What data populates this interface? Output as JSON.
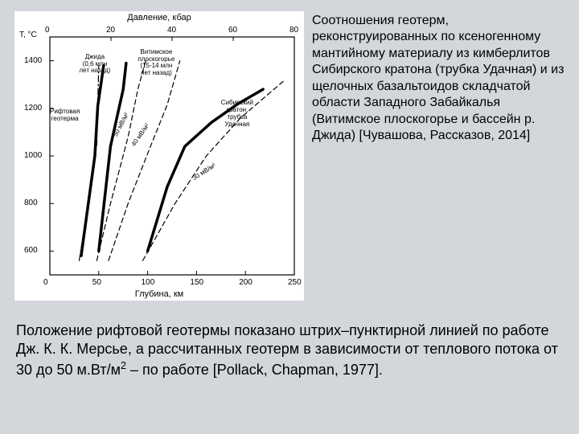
{
  "chart": {
    "type": "line",
    "background_color": "#ffffff",
    "page_bg": "#d3d7dc",
    "stroke_color": "#000000",
    "x_top": {
      "title": "Давление, кбар",
      "min": 0,
      "max": 80,
      "tick_step": 20,
      "ticks": [
        0,
        20,
        40,
        60,
        80
      ]
    },
    "x_bottom": {
      "title": "Глубина, км",
      "min": 0,
      "max": 250,
      "tick_step": 50,
      "ticks": [
        0,
        50,
        100,
        150,
        200,
        250
      ]
    },
    "y": {
      "unit": "T, °C",
      "min": 500,
      "max": 1500,
      "tick_step": 200,
      "ticks": [
        600,
        800,
        1000,
        1200,
        1400
      ]
    },
    "series": {
      "dzhida": {
        "style": "solid",
        "width": 3.5,
        "points": [
          [
            32,
            580
          ],
          [
            46,
            1000
          ],
          [
            49,
            1210
          ],
          [
            55,
            1380
          ]
        ]
      },
      "vitimskoe": {
        "style": "solid",
        "width": 3.5,
        "points": [
          [
            50,
            600
          ],
          [
            62,
            1040
          ],
          [
            75,
            1280
          ],
          [
            78,
            1390
          ]
        ]
      },
      "siberian_craton": {
        "style": "solid",
        "width": 3.5,
        "points": [
          [
            100,
            600
          ],
          [
            120,
            870
          ],
          [
            138,
            1040
          ],
          [
            165,
            1140
          ],
          [
            192,
            1218
          ],
          [
            218,
            1280
          ]
        ]
      },
      "rift_geotherm": {
        "style": "dashdot",
        "width": 1.2,
        "points": [
          [
            30,
            560
          ],
          [
            40,
            820
          ],
          [
            48,
            1050
          ],
          [
            50,
            1380
          ]
        ]
      },
      "hf50": {
        "style": "dash",
        "width": 1.2,
        "points": [
          [
            48,
            560
          ],
          [
            62,
            800
          ],
          [
            80,
            1080
          ],
          [
            90,
            1280
          ],
          [
            98,
            1400
          ]
        ]
      },
      "hf40": {
        "style": "dash",
        "width": 1.2,
        "points": [
          [
            60,
            560
          ],
          [
            80,
            800
          ],
          [
            100,
            1010
          ],
          [
            120,
            1215
          ],
          [
            133,
            1400
          ]
        ]
      },
      "hf30": {
        "style": "dash",
        "width": 1.2,
        "points": [
          [
            95,
            560
          ],
          [
            128,
            800
          ],
          [
            160,
            1000
          ],
          [
            195,
            1160
          ],
          [
            240,
            1318
          ]
        ]
      }
    },
    "annotations": {
      "dzhida_lbl": "Джида\n(0,6 млн\nлет назад)",
      "vitimskoe_lbl": "Витимское\nплоскогорье\n(15-14 млн\nлет назад)",
      "rift_lbl": "Рифтовая\nгеотерма",
      "craton_lbl": "Сибирский\nкратон,\nтрубка\nУдачная",
      "hf50_lbl": "50 мВ/м²",
      "hf40_lbl": "40 мВ/м²",
      "hf30_lbl": "30 мВ/м²"
    }
  },
  "description": "Соотношения геотерм, реконструированных по ксеногенному мантийному материалу из кимберлитов Сибирского кратона (трубка Удачная) и из щелочных базальтоидов складчатой области Западного Забайкалья (Витимское плоскогорье и бассейн р. Джида) [Чувашова, Рассказов, 2014]",
  "bottom_text_a": "Положение рифтовой геотермы показано штрих–пунктирной линией по работе Дж. К. К. Мерсье, а рассчитанных геотерм в зависимости от теплового потока от 30 до 50 м.Вт/м",
  "bottom_text_b": " – по работе [Pollack, Chapman, 1977].",
  "bottom_sup": "2"
}
